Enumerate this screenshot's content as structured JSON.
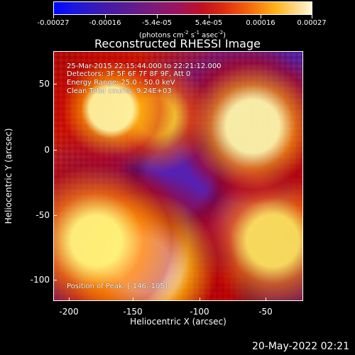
{
  "colorbar": {
    "ticks": [
      "-0.00027",
      "-0.00016",
      "-5.4e-05",
      "5.4e-05",
      "0.00016",
      "0.00027"
    ],
    "units_prefix": "(photons cm",
    "units_exp1": "-2",
    "units_mid": " s",
    "units_exp2": "-1",
    "units_mid2": " asec",
    "units_exp3": "-2",
    "units_suffix": ")"
  },
  "title": "Reconstructed RHESSI Image",
  "overlay": {
    "line1": "25-Mar-2015 22:15:44.000 to 22:21:12.000",
    "line2": "Detectors: 3F 5F 6F 7F 8F 9F, Att 0",
    "line3": "Energy Range: 25.0 - 50.0 keV",
    "line4": "Clean     Total counts: 9.24E+03",
    "line5": "Position of Peak: [-146,-105]"
  },
  "axes": {
    "xlabel": "Heliocentric X (arcsec)",
    "ylabel": "Heliocentric Y (arcsec)",
    "xticks": [
      "-200",
      "-150",
      "-100",
      "-50"
    ],
    "yticks": [
      "50",
      "0",
      "-50",
      "-100"
    ]
  },
  "footer_date": "20-May-2022 02:21"
}
